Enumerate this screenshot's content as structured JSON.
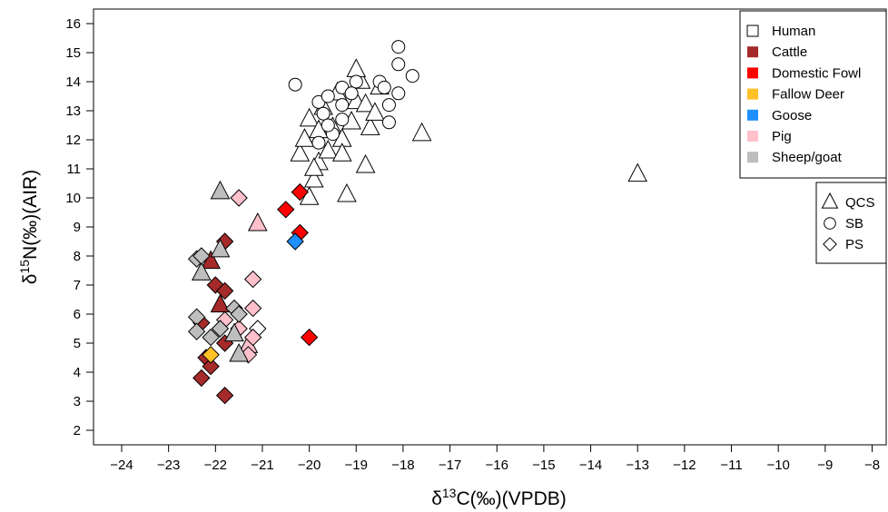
{
  "chart_data": {
    "type": "scatter",
    "title": "",
    "xlabel_prefix": "δ",
    "xlabel_sup": "13",
    "xlabel_main": "C(‰)(VPDB)",
    "ylabel_prefix": "δ",
    "ylabel_sup": "15",
    "ylabel_main": "N(‰)(AIR)",
    "xlim": [
      -24.6,
      -7.7
    ],
    "ylim": [
      1.5,
      16.5
    ],
    "xticks": [
      -24,
      -23,
      -22,
      -21,
      -20,
      -19,
      -18,
      -17,
      -16,
      -15,
      -14,
      -13,
      -12,
      -11,
      -10,
      -9,
      -8
    ],
    "yticks": [
      2,
      3,
      4,
      5,
      6,
      7,
      8,
      9,
      10,
      11,
      12,
      13,
      14,
      15,
      16
    ],
    "grid": false,
    "legend_position": "top-right",
    "species_legend": [
      {
        "label": "Human",
        "color": "#ffffff"
      },
      {
        "label": "Cattle",
        "color": "#a52a2a"
      },
      {
        "label": "Domestic Fowl",
        "color": "#ff0000"
      },
      {
        "label": "Fallow Deer",
        "color": "#ffc125"
      },
      {
        "label": "Goose",
        "color": "#1e90ff"
      },
      {
        "label": "Pig",
        "color": "#ffc0cb"
      },
      {
        "label": "Sheep/goat",
        "color": "#bebebe"
      }
    ],
    "site_legend": [
      {
        "label": "QCS",
        "shape": "triangle"
      },
      {
        "label": "SB",
        "shape": "circle"
      },
      {
        "label": "PS",
        "shape": "diamond"
      }
    ],
    "series": [
      {
        "species": "Human",
        "site": "QCS",
        "points": [
          [
            -20.0,
            10.0
          ],
          [
            -19.9,
            10.6
          ],
          [
            -20.2,
            11.5
          ],
          [
            -20.1,
            12.0
          ],
          [
            -19.8,
            11.2
          ],
          [
            -19.6,
            11.6
          ],
          [
            -19.5,
            12.4
          ],
          [
            -19.7,
            13.1
          ],
          [
            -19.3,
            12.0
          ],
          [
            -19.4,
            13.6
          ],
          [
            -19.1,
            12.6
          ],
          [
            -19.0,
            13.3
          ],
          [
            -18.9,
            14.0
          ],
          [
            -19.0,
            14.4
          ],
          [
            -18.8,
            13.2
          ],
          [
            -18.7,
            12.4
          ],
          [
            -18.5,
            13.8
          ],
          [
            -18.8,
            11.1
          ],
          [
            -19.2,
            10.1
          ],
          [
            -17.6,
            12.2
          ],
          [
            -13.0,
            10.8
          ],
          [
            -20.0,
            12.7
          ],
          [
            -19.8,
            12.3
          ],
          [
            -19.9,
            11.0
          ],
          [
            -19.3,
            11.5
          ],
          [
            -18.6,
            12.9
          ]
        ]
      },
      {
        "species": "Human",
        "site": "SB",
        "points": [
          [
            -20.3,
            13.9
          ],
          [
            -19.8,
            13.3
          ],
          [
            -19.6,
            13.5
          ],
          [
            -19.3,
            13.8
          ],
          [
            -19.0,
            14.0
          ],
          [
            -18.5,
            14.0
          ],
          [
            -18.4,
            13.8
          ],
          [
            -18.1,
            15.2
          ],
          [
            -18.1,
            14.6
          ],
          [
            -17.8,
            14.2
          ],
          [
            -18.1,
            13.6
          ],
          [
            -18.3,
            13.2
          ],
          [
            -18.3,
            12.6
          ],
          [
            -19.1,
            13.6
          ],
          [
            -19.3,
            12.7
          ],
          [
            -19.7,
            12.9
          ],
          [
            -19.5,
            12.2
          ],
          [
            -19.8,
            11.9
          ],
          [
            -19.6,
            12.5
          ],
          [
            -19.3,
            13.2
          ]
        ]
      },
      {
        "species": "Human",
        "site": "PS",
        "points": [
          [
            -21.1,
            5.5
          ]
        ]
      },
      {
        "species": "Cattle",
        "site": "QCS",
        "points": [
          [
            -22.1,
            7.8
          ],
          [
            -21.9,
            6.3
          ]
        ]
      },
      {
        "species": "Cattle",
        "site": "PS",
        "points": [
          [
            -21.8,
            8.5
          ],
          [
            -22.0,
            7.0
          ],
          [
            -21.8,
            6.8
          ],
          [
            -22.3,
            5.7
          ],
          [
            -21.8,
            5.0
          ],
          [
            -22.2,
            4.5
          ],
          [
            -22.1,
            4.2
          ],
          [
            -22.3,
            3.8
          ],
          [
            -21.8,
            3.2
          ]
        ]
      },
      {
        "species": "Domestic Fowl",
        "site": "PS",
        "points": [
          [
            -20.2,
            10.2
          ],
          [
            -20.5,
            9.6
          ],
          [
            -20.2,
            8.8
          ],
          [
            -20.0,
            5.2
          ]
        ]
      },
      {
        "species": "Fallow Deer",
        "site": "PS",
        "points": [
          [
            -22.1,
            4.6
          ]
        ]
      },
      {
        "species": "Goose",
        "site": "PS",
        "points": [
          [
            -20.3,
            8.5
          ]
        ]
      },
      {
        "species": "Pig",
        "site": "QCS",
        "points": [
          [
            -21.1,
            9.1
          ],
          [
            -21.3,
            4.9
          ]
        ]
      },
      {
        "species": "Pig",
        "site": "PS",
        "points": [
          [
            -21.5,
            10.0
          ],
          [
            -21.2,
            7.2
          ],
          [
            -21.2,
            6.2
          ],
          [
            -21.8,
            5.8
          ],
          [
            -21.5,
            5.5
          ],
          [
            -21.2,
            5.2
          ],
          [
            -21.3,
            4.6
          ]
        ]
      },
      {
        "species": "Sheep/goat",
        "site": "QCS",
        "points": [
          [
            -21.9,
            10.2
          ],
          [
            -21.9,
            8.2
          ],
          [
            -22.3,
            7.4
          ],
          [
            -21.6,
            5.3
          ],
          [
            -21.5,
            4.6
          ]
        ]
      },
      {
        "species": "Sheep/goat",
        "site": "PS",
        "points": [
          [
            -22.4,
            7.9
          ],
          [
            -22.3,
            8.0
          ],
          [
            -21.6,
            6.2
          ],
          [
            -21.5,
            6.0
          ],
          [
            -22.4,
            5.9
          ],
          [
            -22.4,
            5.4
          ],
          [
            -22.1,
            5.2
          ],
          [
            -21.9,
            5.5
          ]
        ]
      }
    ]
  }
}
